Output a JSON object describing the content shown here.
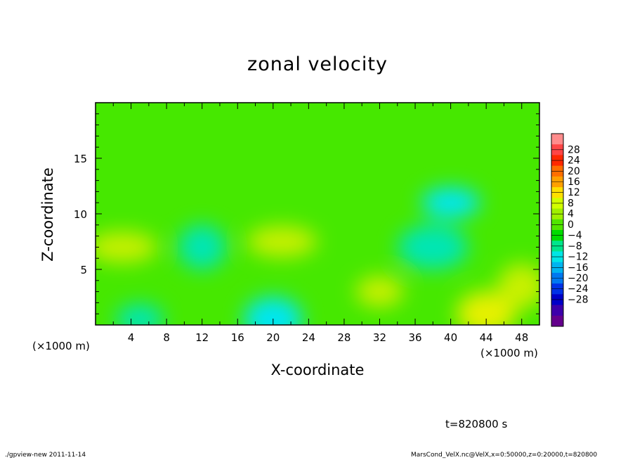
{
  "chart_data": {
    "type": "heatmap",
    "title": "zonal velocity",
    "xlabel": "X-coordinate",
    "ylabel": "Z-coordinate",
    "x_unit": "(×1000 m)",
    "x_ticks": [
      4,
      8,
      12,
      16,
      20,
      24,
      28,
      32,
      36,
      40,
      44,
      48
    ],
    "y_ticks": [
      5,
      10,
      15
    ],
    "xlim": [
      0,
      50
    ],
    "ylim": [
      0,
      20
    ],
    "colorbar_labels": [
      "28",
      "24",
      "20",
      "16",
      "12",
      "8",
      "4",
      "0",
      "−4",
      "−8",
      "−12",
      "−16",
      "−20",
      "−24",
      "−28"
    ],
    "colorbar_colors": [
      "#ff8c8c",
      "#ff4646",
      "#ff2800",
      "#ff6e00",
      "#ffa000",
      "#ffe000",
      "#d2ff00",
      "#a0f000",
      "#50e600",
      "#00dc00",
      "#00e68c",
      "#00e6e6",
      "#00b4f0",
      "#0078f0",
      "#0032e6",
      "#0000c8",
      "#3c00aa",
      "#64008c"
    ],
    "note_points": [
      {
        "x": 5,
        "z": 0.5,
        "value": -10
      },
      {
        "x": 20,
        "z": 0.5,
        "value": -12
      },
      {
        "x": 21,
        "z": 7.5,
        "value": 6
      },
      {
        "x": 12,
        "z": 7,
        "value": -8
      },
      {
        "x": 40,
        "z": 11,
        "value": -12
      },
      {
        "x": 38,
        "z": 7,
        "value": -10
      },
      {
        "x": 32,
        "z": 3,
        "value": 6
      },
      {
        "x": 44,
        "z": 1,
        "value": 8
      },
      {
        "x": 3,
        "z": 7,
        "value": 4
      },
      {
        "x": 48,
        "z": 3.5,
        "value": 6
      }
    ]
  },
  "time_label": "t=820800 s",
  "footer_left": "./gpview-new  2011-11-14",
  "footer_right": "MarsCond_VelX.nc@VelX,x=0:50000,z=0:20000,t=820800"
}
